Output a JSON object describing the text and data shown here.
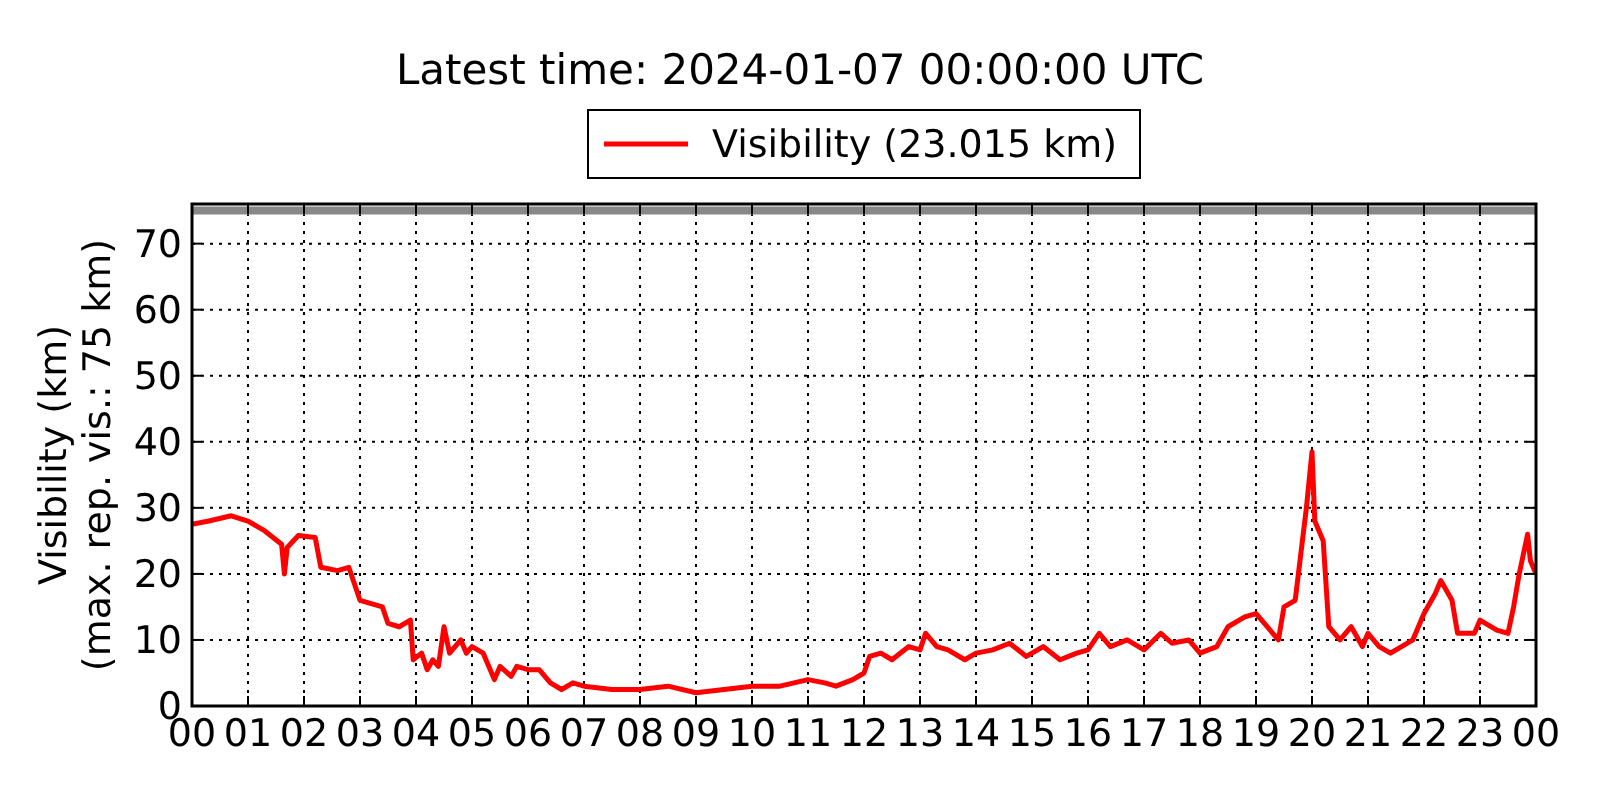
{
  "chart_data": {
    "type": "line",
    "title": "Latest time: 2024-01-07 00:00:00 UTC",
    "ylabel": "Visibility (km)\n(max. rep. vis.: 75 km)",
    "xlim": [
      0,
      24
    ],
    "ylim": [
      0,
      76
    ],
    "xticks": [
      {
        "value": 0,
        "label": "00"
      },
      {
        "value": 1,
        "label": "01"
      },
      {
        "value": 2,
        "label": "02"
      },
      {
        "value": 3,
        "label": "03"
      },
      {
        "value": 4,
        "label": "04"
      },
      {
        "value": 5,
        "label": "05"
      },
      {
        "value": 6,
        "label": "06"
      },
      {
        "value": 7,
        "label": "07"
      },
      {
        "value": 8,
        "label": "08"
      },
      {
        "value": 9,
        "label": "09"
      },
      {
        "value": 10,
        "label": "10"
      },
      {
        "value": 11,
        "label": "11"
      },
      {
        "value": 12,
        "label": "12"
      },
      {
        "value": 13,
        "label": "13"
      },
      {
        "value": 14,
        "label": "14"
      },
      {
        "value": 15,
        "label": "15"
      },
      {
        "value": 16,
        "label": "16"
      },
      {
        "value": 17,
        "label": "17"
      },
      {
        "value": 18,
        "label": "18"
      },
      {
        "value": 19,
        "label": "19"
      },
      {
        "value": 20,
        "label": "20"
      },
      {
        "value": 21,
        "label": "21"
      },
      {
        "value": 22,
        "label": "22"
      },
      {
        "value": 23,
        "label": "23"
      },
      {
        "value": 24,
        "label": "00"
      }
    ],
    "yticks": [
      0,
      10,
      20,
      30,
      40,
      50,
      60,
      70
    ],
    "grid": true,
    "legend": "top",
    "line_style": "solid",
    "ref_lines": [
      {
        "axis": "y",
        "value": 75,
        "color": "#888888"
      }
    ],
    "x": [
      0,
      0.3,
      0.7,
      1.0,
      1.3,
      1.6,
      1.65,
      1.7,
      1.9,
      2.2,
      2.3,
      2.6,
      2.8,
      3.0,
      3.2,
      3.4,
      3.5,
      3.7,
      3.9,
      3.95,
      4.1,
      4.2,
      4.3,
      4.4,
      4.5,
      4.6,
      4.8,
      4.9,
      5.0,
      5.2,
      5.4,
      5.5,
      5.7,
      5.8,
      6.0,
      6.2,
      6.4,
      6.6,
      6.8,
      7.0,
      7.5,
      8.0,
      8.5,
      9.0,
      9.5,
      10.0,
      10.5,
      11.0,
      11.3,
      11.5,
      11.8,
      12.0,
      12.1,
      12.3,
      12.5,
      12.8,
      13.0,
      13.1,
      13.3,
      13.5,
      13.8,
      14.0,
      14.3,
      14.6,
      14.9,
      15.2,
      15.5,
      15.8,
      16.0,
      16.2,
      16.4,
      16.7,
      17.0,
      17.3,
      17.5,
      17.8,
      18.0,
      18.3,
      18.5,
      18.8,
      19.0,
      19.2,
      19.4,
      19.5,
      19.7,
      19.8,
      19.9,
      20.0,
      20.05,
      20.2,
      20.3,
      20.5,
      20.7,
      20.9,
      21.0,
      21.2,
      21.4,
      21.6,
      21.8,
      22.0,
      22.2,
      22.3,
      22.5,
      22.6,
      22.9,
      23.0,
      23.3,
      23.5,
      23.6,
      23.7,
      23.85,
      23.9,
      24
    ],
    "series": [
      {
        "name": "Visibility (23.015 km)",
        "color": "#ff0000",
        "values": [
          27.5,
          28,
          28.8,
          28,
          26.5,
          24.5,
          20,
          24,
          25.8,
          25.5,
          21,
          20.5,
          21,
          16,
          15.5,
          15,
          12.5,
          12,
          13,
          7,
          8,
          5.5,
          7,
          6,
          12,
          8,
          10,
          8,
          9,
          8,
          4,
          6,
          4.5,
          6,
          5.5,
          5.5,
          3.5,
          2.5,
          3.5,
          3,
          2.5,
          2.5,
          3,
          2,
          2.5,
          3,
          3,
          4,
          3.5,
          3,
          4,
          5,
          7.5,
          8,
          7,
          9,
          8.5,
          11,
          9,
          8.5,
          7,
          8,
          8.5,
          9.5,
          7.5,
          9,
          7,
          8,
          8.5,
          11,
          9,
          10,
          8.5,
          11,
          9.5,
          10,
          8,
          9,
          12,
          13.5,
          14,
          12,
          10,
          15,
          16,
          23,
          30,
          38.5,
          28,
          25,
          12,
          10,
          12,
          9,
          11,
          9,
          8,
          9,
          10,
          14,
          17,
          19,
          16,
          11,
          11,
          13,
          11.5,
          11,
          15,
          20,
          26,
          22,
          20
        ]
      }
    ]
  }
}
